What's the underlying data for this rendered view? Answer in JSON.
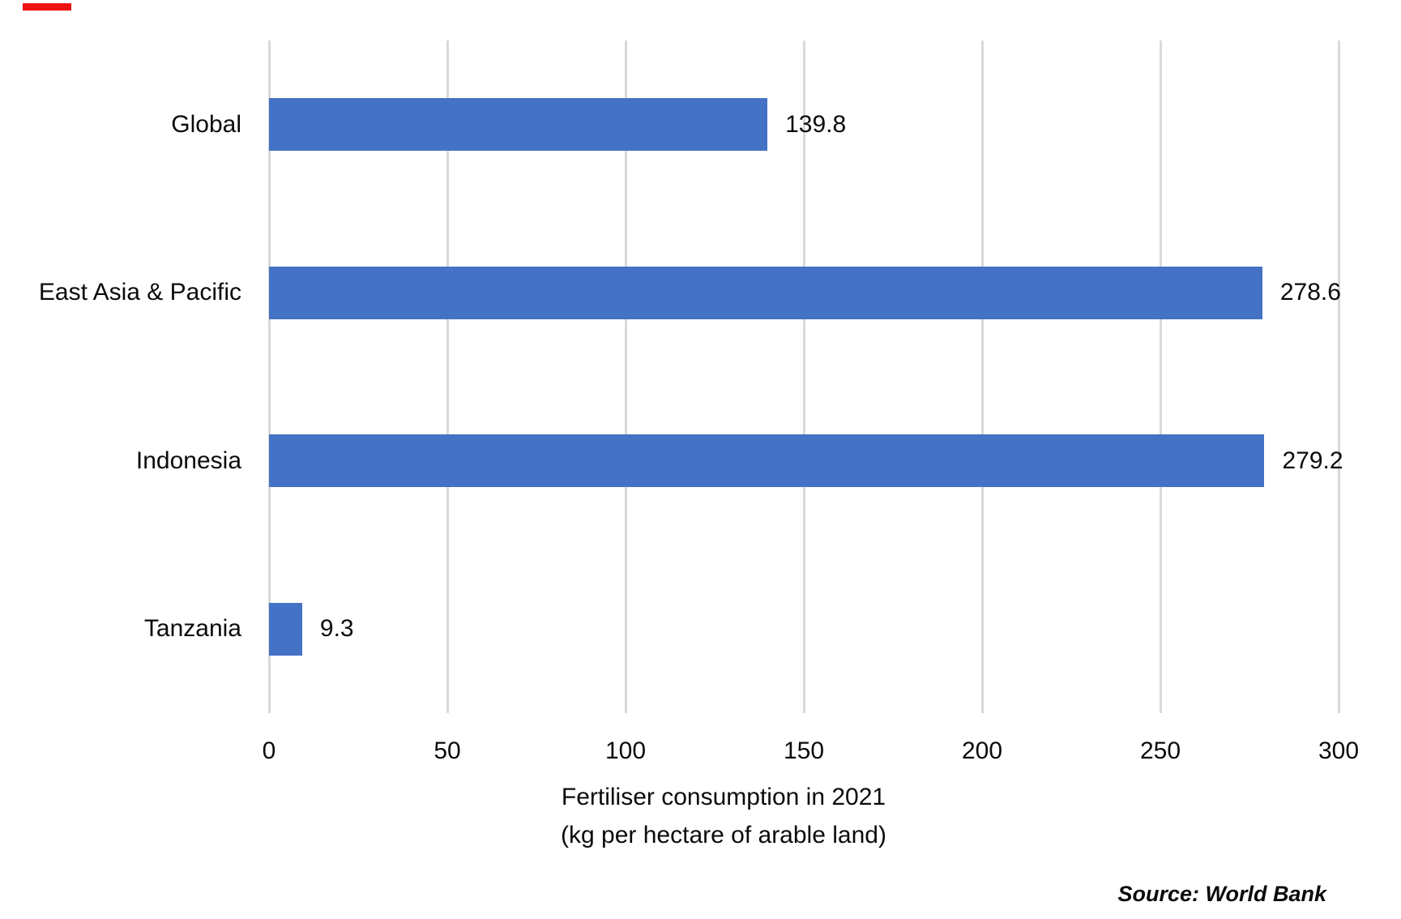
{
  "decor": {
    "red_marker_color": "#ee1111",
    "background_color": "#ffffff",
    "text_color": "#0b0b0b"
  },
  "chart_data": {
    "type": "bar",
    "orientation": "horizontal",
    "title": "",
    "categories": [
      "Global",
      "East Asia & Pacific",
      "Indonesia",
      "Tanzania"
    ],
    "values": [
      139.8,
      278.6,
      279.2,
      9.3
    ],
    "value_labels": [
      "139.8",
      "278.6",
      "279.2",
      "9.3"
    ],
    "x_ticks": [
      "0",
      "50",
      "100",
      "150",
      "200",
      "250",
      "300"
    ],
    "xlim": [
      0,
      300
    ],
    "xlabel_line1": "Fertiliser consumption in 2021",
    "xlabel_line2": "(kg per hectare of arable land)",
    "ylabel": "",
    "grid": true,
    "legend": "none",
    "bar_color": "#4472C4",
    "gridline_color": "#D9D9D9",
    "source_note": "Source: World Bank"
  }
}
